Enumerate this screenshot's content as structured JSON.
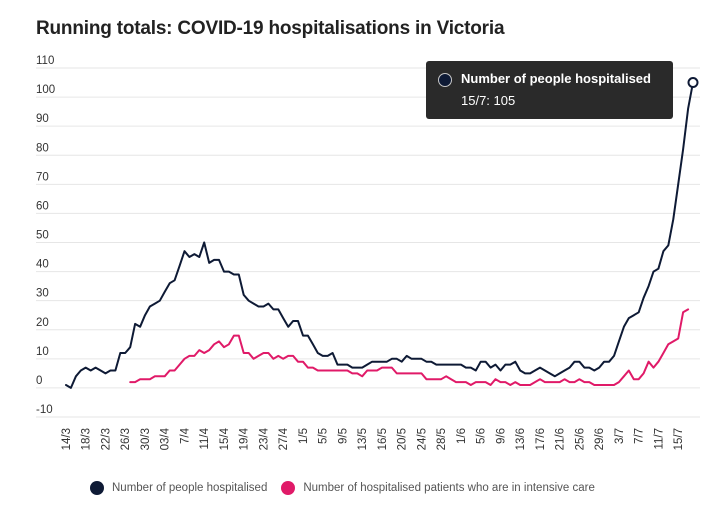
{
  "chart_data": {
    "type": "line",
    "title": "Running totals: COVID-19 hospitalisations in Victoria",
    "xlabel": "",
    "ylabel": "",
    "ylim": [
      -10,
      110
    ],
    "yticks": [
      110,
      100,
      90,
      80,
      70,
      60,
      50,
      40,
      30,
      20,
      10,
      0,
      -10
    ],
    "grid": true,
    "legend_position": "bottom",
    "x_tick_labels": [
      "14/3",
      "18/3",
      "22/3",
      "26/3",
      "30/3",
      "03/4",
      "7/4",
      "11/4",
      "15/4",
      "19/4",
      "23/4",
      "27/4",
      "1/5",
      "5/5",
      "9/5",
      "13/5",
      "16/5",
      "20/5",
      "24/5",
      "28/5",
      "1/6",
      "5/6",
      "9/6",
      "13/6",
      "17/6",
      "21/6",
      "25/6",
      "29/6",
      "3/7",
      "7/7",
      "11/7",
      "15/7"
    ],
    "series": [
      {
        "name": "Number of people hospitalised",
        "color": "#0e1a35",
        "values": [
          [
            0,
            1
          ],
          [
            1,
            0
          ],
          [
            2,
            4
          ],
          [
            3,
            6
          ],
          [
            4,
            7
          ],
          [
            5,
            6
          ],
          [
            6,
            7
          ],
          [
            7,
            6
          ],
          [
            8,
            5
          ],
          [
            9,
            6
          ],
          [
            10,
            6
          ],
          [
            11,
            12
          ],
          [
            12,
            12
          ],
          [
            13,
            14
          ],
          [
            14,
            22
          ],
          [
            15,
            21
          ],
          [
            16,
            25
          ],
          [
            17,
            28
          ],
          [
            18,
            29
          ],
          [
            19,
            30
          ],
          [
            20,
            33
          ],
          [
            21,
            36
          ],
          [
            22,
            37
          ],
          [
            23,
            42
          ],
          [
            24,
            47
          ],
          [
            25,
            45
          ],
          [
            26,
            46
          ],
          [
            27,
            45
          ],
          [
            28,
            50
          ],
          [
            29,
            43
          ],
          [
            30,
            44
          ],
          [
            31,
            44
          ],
          [
            32,
            40
          ],
          [
            33,
            40
          ],
          [
            34,
            39
          ],
          [
            35,
            39
          ],
          [
            36,
            32
          ],
          [
            37,
            30
          ],
          [
            38,
            29
          ],
          [
            39,
            28
          ],
          [
            40,
            28
          ],
          [
            41,
            29
          ],
          [
            42,
            27
          ],
          [
            43,
            27
          ],
          [
            44,
            24
          ],
          [
            45,
            21
          ],
          [
            46,
            23
          ],
          [
            47,
            23
          ],
          [
            48,
            18
          ],
          [
            49,
            18
          ],
          [
            50,
            15
          ],
          [
            51,
            12
          ],
          [
            52,
            11
          ],
          [
            53,
            11
          ],
          [
            54,
            12
          ],
          [
            55,
            8
          ],
          [
            56,
            8
          ],
          [
            57,
            8
          ],
          [
            58,
            7
          ],
          [
            59,
            7
          ],
          [
            60,
            7
          ],
          [
            61,
            8
          ],
          [
            62,
            9
          ],
          [
            63,
            9
          ],
          [
            64,
            9
          ],
          [
            65,
            9
          ],
          [
            66,
            10
          ],
          [
            67,
            10
          ],
          [
            68,
            9
          ],
          [
            69,
            11
          ],
          [
            70,
            10
          ],
          [
            71,
            10
          ],
          [
            72,
            10
          ],
          [
            73,
            9
          ],
          [
            74,
            9
          ],
          [
            75,
            8
          ],
          [
            76,
            8
          ],
          [
            77,
            8
          ],
          [
            78,
            8
          ],
          [
            79,
            8
          ],
          [
            80,
            8
          ],
          [
            81,
            7
          ],
          [
            82,
            7
          ],
          [
            83,
            6
          ],
          [
            84,
            9
          ],
          [
            85,
            9
          ],
          [
            86,
            7
          ],
          [
            87,
            8
          ],
          [
            88,
            6
          ],
          [
            89,
            8
          ],
          [
            90,
            8
          ],
          [
            91,
            9
          ],
          [
            92,
            6
          ],
          [
            93,
            5
          ],
          [
            94,
            5
          ],
          [
            95,
            6
          ],
          [
            96,
            7
          ],
          [
            97,
            6
          ],
          [
            98,
            5
          ],
          [
            99,
            4
          ],
          [
            100,
            5
          ],
          [
            101,
            6
          ],
          [
            102,
            7
          ],
          [
            103,
            9
          ],
          [
            104,
            9
          ],
          [
            105,
            7
          ],
          [
            106,
            7
          ],
          [
            107,
            6
          ],
          [
            108,
            7
          ],
          [
            109,
            9
          ],
          [
            110,
            9
          ],
          [
            111,
            11
          ],
          [
            112,
            16
          ],
          [
            113,
            21
          ],
          [
            114,
            24
          ],
          [
            115,
            25
          ],
          [
            116,
            26
          ],
          [
            117,
            31
          ],
          [
            118,
            35
          ],
          [
            119,
            40
          ],
          [
            120,
            41
          ],
          [
            121,
            47
          ],
          [
            122,
            49
          ],
          [
            123,
            58
          ],
          [
            124,
            70
          ],
          [
            125,
            82
          ],
          [
            126,
            96
          ],
          [
            127,
            105
          ]
        ]
      },
      {
        "name": "Number of hospitalised patients who are in intensive care",
        "color": "#e01a68",
        "values": [
          [
            13,
            2
          ],
          [
            14,
            2
          ],
          [
            15,
            3
          ],
          [
            16,
            3
          ],
          [
            17,
            3
          ],
          [
            18,
            4
          ],
          [
            19,
            4
          ],
          [
            20,
            4
          ],
          [
            21,
            6
          ],
          [
            22,
            6
          ],
          [
            23,
            8
          ],
          [
            24,
            10
          ],
          [
            25,
            11
          ],
          [
            26,
            11
          ],
          [
            27,
            13
          ],
          [
            28,
            12
          ],
          [
            29,
            13
          ],
          [
            30,
            15
          ],
          [
            31,
            16
          ],
          [
            32,
            14
          ],
          [
            33,
            15
          ],
          [
            34,
            18
          ],
          [
            35,
            18
          ],
          [
            36,
            12
          ],
          [
            37,
            12
          ],
          [
            38,
            10
          ],
          [
            39,
            11
          ],
          [
            40,
            12
          ],
          [
            41,
            12
          ],
          [
            42,
            10
          ],
          [
            43,
            11
          ],
          [
            44,
            10
          ],
          [
            45,
            11
          ],
          [
            46,
            11
          ],
          [
            47,
            9
          ],
          [
            48,
            9
          ],
          [
            49,
            7
          ],
          [
            50,
            7
          ],
          [
            51,
            6
          ],
          [
            52,
            6
          ],
          [
            53,
            6
          ],
          [
            54,
            6
          ],
          [
            55,
            6
          ],
          [
            56,
            6
          ],
          [
            57,
            6
          ],
          [
            58,
            5
          ],
          [
            59,
            5
          ],
          [
            60,
            4
          ],
          [
            61,
            6
          ],
          [
            62,
            6
          ],
          [
            63,
            6
          ],
          [
            64,
            7
          ],
          [
            65,
            7
          ],
          [
            66,
            7
          ],
          [
            67,
            5
          ],
          [
            68,
            5
          ],
          [
            69,
            5
          ],
          [
            70,
            5
          ],
          [
            71,
            5
          ],
          [
            72,
            5
          ],
          [
            73,
            3
          ],
          [
            74,
            3
          ],
          [
            75,
            3
          ],
          [
            76,
            3
          ],
          [
            77,
            4
          ],
          [
            78,
            3
          ],
          [
            79,
            2
          ],
          [
            80,
            2
          ],
          [
            81,
            2
          ],
          [
            82,
            1
          ],
          [
            83,
            2
          ],
          [
            84,
            2
          ],
          [
            85,
            2
          ],
          [
            86,
            1
          ],
          [
            87,
            3
          ],
          [
            88,
            2
          ],
          [
            89,
            2
          ],
          [
            90,
            1
          ],
          [
            91,
            2
          ],
          [
            92,
            1
          ],
          [
            93,
            1
          ],
          [
            94,
            1
          ],
          [
            95,
            2
          ],
          [
            96,
            3
          ],
          [
            97,
            2
          ],
          [
            98,
            2
          ],
          [
            99,
            2
          ],
          [
            100,
            2
          ],
          [
            101,
            3
          ],
          [
            102,
            2
          ],
          [
            103,
            2
          ],
          [
            104,
            3
          ],
          [
            105,
            2
          ],
          [
            106,
            2
          ],
          [
            107,
            1
          ],
          [
            108,
            1
          ],
          [
            109,
            1
          ],
          [
            110,
            1
          ],
          [
            111,
            1
          ],
          [
            112,
            2
          ],
          [
            113,
            4
          ],
          [
            114,
            6
          ],
          [
            115,
            3
          ],
          [
            116,
            3
          ],
          [
            117,
            5
          ],
          [
            118,
            9
          ],
          [
            119,
            7
          ],
          [
            120,
            9
          ],
          [
            121,
            12
          ],
          [
            122,
            15
          ],
          [
            123,
            16
          ],
          [
            124,
            17
          ],
          [
            125,
            26
          ],
          [
            126,
            27
          ]
        ]
      }
    ],
    "tooltip": {
      "series_name": "Number of people hospitalised",
      "text": "15/7: 105"
    }
  }
}
